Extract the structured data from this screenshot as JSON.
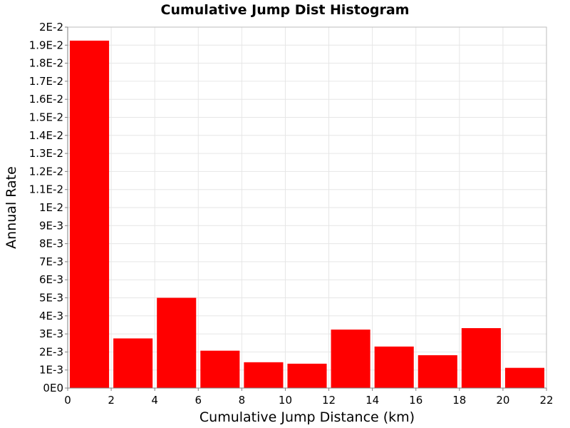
{
  "chart_data": {
    "type": "bar",
    "title": "Cumulative Jump Dist Histogram",
    "xlabel": "Cumulative Jump Distance (km)",
    "ylabel": "Annual Rate",
    "xlim": [
      0,
      22
    ],
    "ylim": [
      0,
      0.02
    ],
    "bin_width": 2,
    "grid": true,
    "legend": "none",
    "bar_color": "#ff0000",
    "x": [
      1,
      3,
      5,
      7,
      9,
      11,
      13,
      15,
      17,
      19,
      21
    ],
    "values": [
      0.01925,
      0.00275,
      0.005,
      0.00207,
      0.00143,
      0.00135,
      0.00324,
      0.0023,
      0.00182,
      0.00332,
      0.00112
    ],
    "x_ticks": [
      0,
      2,
      4,
      6,
      8,
      10,
      12,
      14,
      16,
      18,
      20,
      22
    ],
    "x_tick_labels": [
      "0",
      "2",
      "4",
      "6",
      "8",
      "10",
      "12",
      "14",
      "16",
      "18",
      "20",
      "22"
    ],
    "y_ticks": [
      0,
      0.001,
      0.002,
      0.003,
      0.004,
      0.005,
      0.006,
      0.007,
      0.008,
      0.009,
      0.01,
      0.011,
      0.012,
      0.013,
      0.014,
      0.015,
      0.016,
      0.017,
      0.018,
      0.019,
      0.02
    ],
    "y_tick_labels": [
      "0E0",
      "1E-3",
      "2E-3",
      "3E-3",
      "4E-3",
      "5E-3",
      "6E-3",
      "7E-3",
      "8E-3",
      "9E-3",
      "1E-2",
      "1.1E-2",
      "1.2E-2",
      "1.3E-2",
      "1.4E-2",
      "1.5E-2",
      "1.6E-2",
      "1.7E-2",
      "1.8E-2",
      "1.9E-2",
      "2E-2"
    ]
  }
}
